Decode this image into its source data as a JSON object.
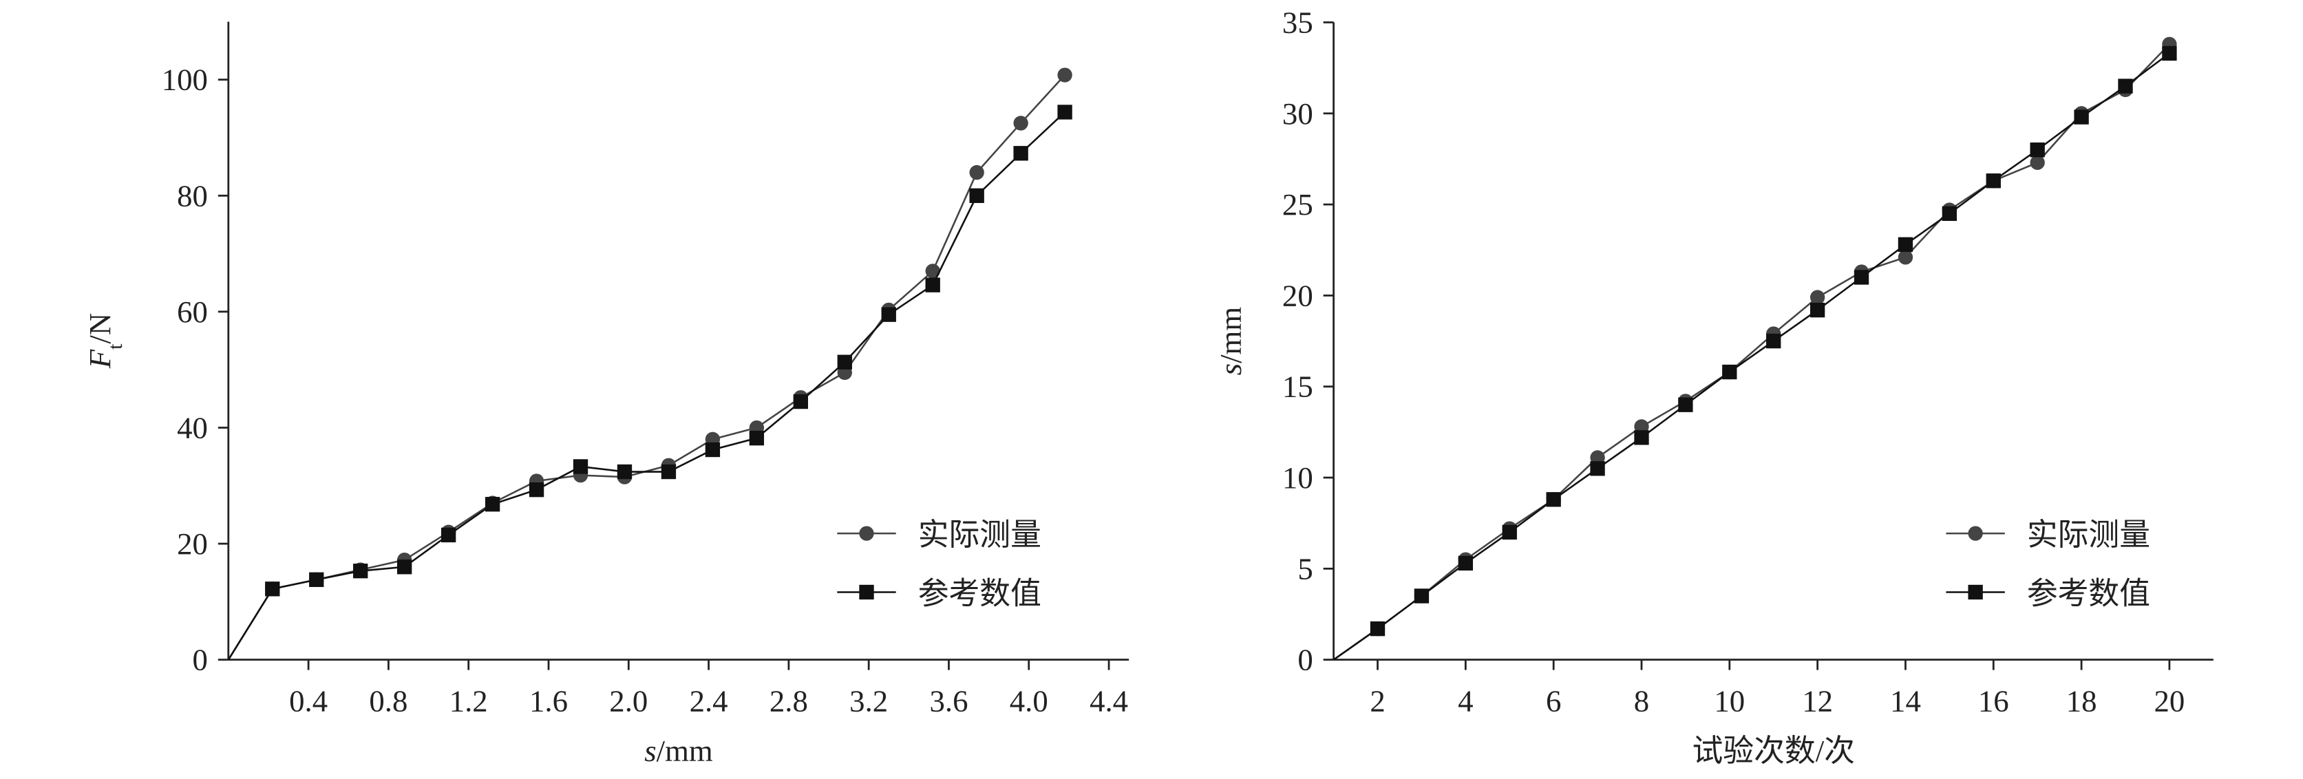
{
  "chart_data": [
    {
      "type": "line",
      "x_label": {
        "var": "s",
        "unit": "/mm"
      },
      "y_label": {
        "var": "F",
        "sub": "t",
        "unit": "/N"
      },
      "x": [
        0,
        0.22,
        0.44,
        0.66,
        0.88,
        1.1,
        1.32,
        1.54,
        1.76,
        1.98,
        2.2,
        2.42,
        2.64,
        2.86,
        3.08,
        3.3,
        3.52,
        3.74,
        3.96,
        4.18
      ],
      "series": [
        {
          "name": "实际测量",
          "color": "#444444",
          "marker": "circle",
          "values": [
            0,
            12.2,
            13.8,
            15.5,
            17.2,
            22,
            27,
            30.8,
            31.8,
            31.5,
            33.5,
            38,
            40,
            45.2,
            49.5,
            60.3,
            67,
            84,
            92.5,
            100.8
          ]
        },
        {
          "name": "参考数值",
          "color": "#111111",
          "marker": "square",
          "values": [
            0,
            12.2,
            13.8,
            15.3,
            16,
            21.5,
            26.8,
            29.3,
            33.3,
            32.4,
            32.4,
            36.2,
            38.2,
            44.5,
            51.3,
            59.5,
            64.6,
            80,
            87.3,
            94.4
          ]
        }
      ],
      "xlim": [
        0,
        4.5
      ],
      "xticks": [
        0.4,
        0.8,
        1.2,
        1.6,
        {
          "value": 2,
          "label": "2.0"
        },
        2.4,
        2.8,
        3.2,
        3.6,
        {
          "value": 4,
          "label": "4.0"
        },
        4.4
      ],
      "ylim": [
        0,
        110
      ],
      "yticks": [
        0,
        20,
        40,
        60,
        80,
        100
      ],
      "legend": "lower-right"
    },
    {
      "type": "line",
      "x_label": "试验次数/次",
      "y_label": {
        "var": "s",
        "unit": "/mm"
      },
      "x": [
        1,
        2,
        3,
        4,
        5,
        6,
        7,
        8,
        9,
        10,
        11,
        12,
        13,
        14,
        15,
        16,
        17,
        18,
        19,
        20
      ],
      "series": [
        {
          "name": "实际测量",
          "color": "#444444",
          "marker": "circle",
          "values": [
            0,
            1.7,
            3.5,
            5.5,
            7.2,
            8.8,
            11.1,
            12.8,
            14.2,
            15.8,
            17.9,
            19.9,
            21.3,
            22.1,
            24.7,
            26.3,
            27.3,
            30,
            31.3,
            33.8
          ]
        },
        {
          "name": "参考数值",
          "color": "#111111",
          "marker": "square",
          "values": [
            0,
            1.7,
            3.5,
            5.3,
            7,
            8.8,
            10.5,
            12.2,
            14,
            15.8,
            17.5,
            19.2,
            21,
            22.8,
            24.5,
            26.3,
            28,
            29.8,
            31.5,
            33.3
          ]
        }
      ],
      "xlim": [
        1,
        21
      ],
      "xticks": [
        2,
        4,
        6,
        8,
        10,
        12,
        14,
        16,
        18,
        20
      ],
      "ylim": [
        0,
        35
      ],
      "yticks": [
        0,
        5,
        10,
        15,
        20,
        25,
        30,
        35
      ],
      "legend": "lower-right"
    }
  ]
}
